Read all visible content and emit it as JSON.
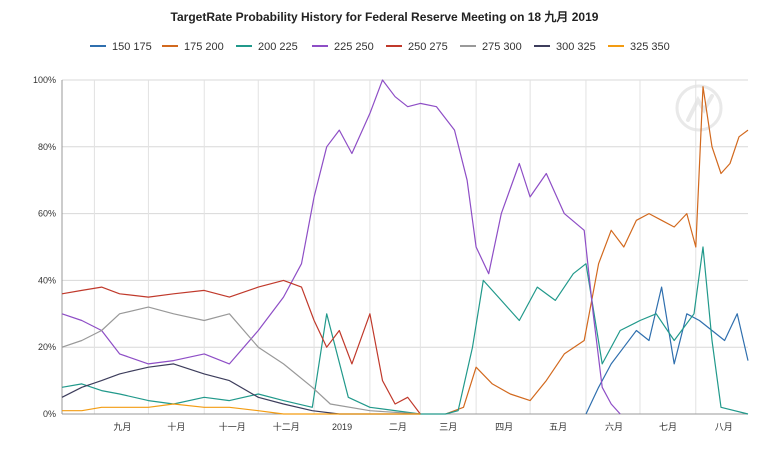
{
  "chart_data": {
    "type": "line",
    "title": "TargetRate Probability History for Federal Reserve Meeting on 18 九月 2019",
    "xlabel": "",
    "ylabel": "",
    "ylim": [
      0,
      100
    ],
    "y_ticks": [
      "0%",
      "20%",
      "40%",
      "60%",
      "80%",
      "100%"
    ],
    "x_tick_labels": [
      "九月",
      "十月",
      "十一月",
      "十二月",
      "2019",
      "二月",
      "三月",
      "四月",
      "五月",
      "六月",
      "七月",
      "八月"
    ],
    "x_range": [
      "2018-08-14",
      "2019-08-30"
    ],
    "x_ticks": [
      "2018-09-01",
      "2018-10-01",
      "2018-11-01",
      "2018-12-01",
      "2019-01-01",
      "2019-02-01",
      "2019-03-01",
      "2019-04-01",
      "2019-05-01",
      "2019-06-01",
      "2019-07-01",
      "2019-08-01"
    ],
    "grid": true,
    "legend_position": "top",
    "series": [
      {
        "name": "150 175",
        "color": "#2f6fae",
        "points": [
          [
            "2019-06-01",
            0
          ],
          [
            "2019-06-08",
            8
          ],
          [
            "2019-06-15",
            15
          ],
          [
            "2019-06-22",
            20
          ],
          [
            "2019-06-29",
            25
          ],
          [
            "2019-07-06",
            22
          ],
          [
            "2019-07-13",
            38
          ],
          [
            "2019-07-20",
            15
          ],
          [
            "2019-07-27",
            30
          ],
          [
            "2019-08-03",
            28
          ],
          [
            "2019-08-10",
            25
          ],
          [
            "2019-08-17",
            22
          ],
          [
            "2019-08-24",
            30
          ],
          [
            "2019-08-30",
            16
          ]
        ]
      },
      {
        "name": "175 200",
        "color": "#d2691e",
        "points": [
          [
            "2019-03-15",
            0
          ],
          [
            "2019-03-25",
            2
          ],
          [
            "2019-04-01",
            14
          ],
          [
            "2019-04-10",
            9
          ],
          [
            "2019-04-20",
            6
          ],
          [
            "2019-05-01",
            4
          ],
          [
            "2019-05-10",
            10
          ],
          [
            "2019-05-20",
            18
          ],
          [
            "2019-05-31",
            22
          ],
          [
            "2019-06-08",
            45
          ],
          [
            "2019-06-15",
            55
          ],
          [
            "2019-06-22",
            50
          ],
          [
            "2019-06-29",
            58
          ],
          [
            "2019-07-06",
            60
          ],
          [
            "2019-07-13",
            58
          ],
          [
            "2019-07-20",
            56
          ],
          [
            "2019-07-27",
            60
          ],
          [
            "2019-08-01",
            50
          ],
          [
            "2019-08-05",
            98
          ],
          [
            "2019-08-10",
            80
          ],
          [
            "2019-08-15",
            72
          ],
          [
            "2019-08-20",
            75
          ],
          [
            "2019-08-25",
            83
          ],
          [
            "2019-08-30",
            85
          ]
        ]
      },
      {
        "name": "200 225",
        "color": "#21998b",
        "points": [
          [
            "2018-08-14",
            8
          ],
          [
            "2018-08-25",
            9
          ],
          [
            "2018-09-05",
            7
          ],
          [
            "2018-09-15",
            6
          ],
          [
            "2018-10-01",
            4
          ],
          [
            "2018-10-15",
            3
          ],
          [
            "2018-11-01",
            5
          ],
          [
            "2018-11-15",
            4
          ],
          [
            "2018-12-01",
            6
          ],
          [
            "2018-12-15",
            4
          ],
          [
            "2018-12-31",
            2
          ],
          [
            "2019-01-08",
            30
          ],
          [
            "2019-01-20",
            5
          ],
          [
            "2019-02-01",
            2
          ],
          [
            "2019-03-01",
            0
          ],
          [
            "2019-03-15",
            0
          ],
          [
            "2019-03-22",
            1
          ],
          [
            "2019-03-30",
            20
          ],
          [
            "2019-04-05",
            40
          ],
          [
            "2019-04-15",
            34
          ],
          [
            "2019-04-25",
            28
          ],
          [
            "2019-05-05",
            38
          ],
          [
            "2019-05-15",
            34
          ],
          [
            "2019-05-25",
            42
          ],
          [
            "2019-06-01",
            45
          ],
          [
            "2019-06-10",
            15
          ],
          [
            "2019-06-20",
            25
          ],
          [
            "2019-07-01",
            28
          ],
          [
            "2019-07-10",
            30
          ],
          [
            "2019-07-20",
            22
          ],
          [
            "2019-07-31",
            30
          ],
          [
            "2019-08-05",
            50
          ],
          [
            "2019-08-10",
            22
          ],
          [
            "2019-08-15",
            2
          ],
          [
            "2019-08-30",
            0
          ]
        ]
      },
      {
        "name": "225 250",
        "color": "#8e4ec6",
        "points": [
          [
            "2018-08-14",
            30
          ],
          [
            "2018-08-25",
            28
          ],
          [
            "2018-09-05",
            25
          ],
          [
            "2018-09-15",
            18
          ],
          [
            "2018-10-01",
            15
          ],
          [
            "2018-10-15",
            16
          ],
          [
            "2018-11-01",
            18
          ],
          [
            "2018-11-15",
            15
          ],
          [
            "2018-12-01",
            25
          ],
          [
            "2018-12-15",
            35
          ],
          [
            "2018-12-25",
            45
          ],
          [
            "2019-01-01",
            65
          ],
          [
            "2019-01-08",
            80
          ],
          [
            "2019-01-15",
            85
          ],
          [
            "2019-01-22",
            78
          ],
          [
            "2019-02-01",
            90
          ],
          [
            "2019-02-08",
            100
          ],
          [
            "2019-02-15",
            95
          ],
          [
            "2019-02-22",
            92
          ],
          [
            "2019-03-01",
            93
          ],
          [
            "2019-03-10",
            92
          ],
          [
            "2019-03-20",
            85
          ],
          [
            "2019-03-27",
            70
          ],
          [
            "2019-04-01",
            50
          ],
          [
            "2019-04-08",
            42
          ],
          [
            "2019-04-15",
            60
          ],
          [
            "2019-04-25",
            75
          ],
          [
            "2019-05-01",
            65
          ],
          [
            "2019-05-10",
            72
          ],
          [
            "2019-05-20",
            60
          ],
          [
            "2019-05-31",
            55
          ],
          [
            "2019-06-05",
            30
          ],
          [
            "2019-06-10",
            8
          ],
          [
            "2019-06-15",
            3
          ],
          [
            "2019-06-20",
            0
          ]
        ]
      },
      {
        "name": "250 275",
        "color": "#c0392b",
        "points": [
          [
            "2018-08-14",
            36
          ],
          [
            "2018-08-25",
            37
          ],
          [
            "2018-09-05",
            38
          ],
          [
            "2018-09-15",
            36
          ],
          [
            "2018-10-01",
            35
          ],
          [
            "2018-10-15",
            36
          ],
          [
            "2018-11-01",
            37
          ],
          [
            "2018-11-15",
            35
          ],
          [
            "2018-12-01",
            38
          ],
          [
            "2018-12-15",
            40
          ],
          [
            "2018-12-25",
            38
          ],
          [
            "2019-01-01",
            28
          ],
          [
            "2019-01-08",
            20
          ],
          [
            "2019-01-15",
            25
          ],
          [
            "2019-01-22",
            15
          ],
          [
            "2019-02-01",
            30
          ],
          [
            "2019-02-08",
            10
          ],
          [
            "2019-02-15",
            3
          ],
          [
            "2019-02-22",
            5
          ],
          [
            "2019-03-01",
            0
          ]
        ]
      },
      {
        "name": "275 300",
        "color": "#999999",
        "points": [
          [
            "2018-08-14",
            20
          ],
          [
            "2018-08-25",
            22
          ],
          [
            "2018-09-05",
            25
          ],
          [
            "2018-09-15",
            30
          ],
          [
            "2018-10-01",
            32
          ],
          [
            "2018-10-15",
            30
          ],
          [
            "2018-11-01",
            28
          ],
          [
            "2018-11-15",
            30
          ],
          [
            "2018-12-01",
            20
          ],
          [
            "2018-12-15",
            15
          ],
          [
            "2018-12-31",
            8
          ],
          [
            "2019-01-10",
            3
          ],
          [
            "2019-02-01",
            1
          ],
          [
            "2019-03-01",
            0
          ]
        ]
      },
      {
        "name": "300 325",
        "color": "#3d3d5c",
        "points": [
          [
            "2018-08-14",
            5
          ],
          [
            "2018-08-25",
            8
          ],
          [
            "2018-09-05",
            10
          ],
          [
            "2018-09-15",
            12
          ],
          [
            "2018-10-01",
            14
          ],
          [
            "2018-10-15",
            15
          ],
          [
            "2018-11-01",
            12
          ],
          [
            "2018-11-15",
            10
          ],
          [
            "2018-12-01",
            5
          ],
          [
            "2018-12-15",
            3
          ],
          [
            "2018-12-31",
            1
          ],
          [
            "2019-01-15",
            0
          ],
          [
            "2019-03-01",
            0
          ]
        ]
      },
      {
        "name": "325 350",
        "color": "#f39c12",
        "points": [
          [
            "2018-08-14",
            1
          ],
          [
            "2018-08-25",
            1
          ],
          [
            "2018-09-05",
            2
          ],
          [
            "2018-09-15",
            2
          ],
          [
            "2018-10-01",
            2
          ],
          [
            "2018-10-15",
            3
          ],
          [
            "2018-11-01",
            2
          ],
          [
            "2018-11-15",
            2
          ],
          [
            "2018-12-01",
            1
          ],
          [
            "2018-12-15",
            0
          ],
          [
            "2019-01-01",
            0
          ],
          [
            "2019-03-01",
            0
          ]
        ]
      }
    ]
  }
}
